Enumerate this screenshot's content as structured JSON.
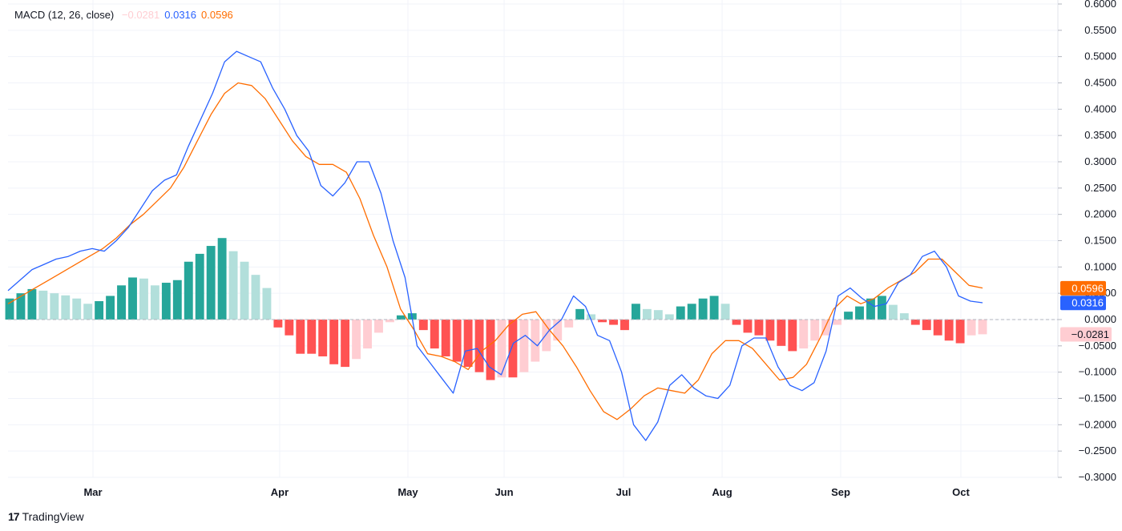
{
  "legend": {
    "name": "MACD (12, 26, close)",
    "histogram_value": "−0.0281",
    "macd_value": "0.0316",
    "signal_value": "0.0596"
  },
  "brand": {
    "logo_glyph": "17",
    "name": "TradingView"
  },
  "colors": {
    "macd_line": "#2962ff",
    "signal_line": "#ff6d00",
    "hist_pos_strong": "#26a69a",
    "hist_pos_weak": "#b2dfdb",
    "hist_neg_strong": "#ff5252",
    "hist_neg_weak": "#ffcdd2",
    "grid": "#f0f3fa"
  },
  "chart_data": {
    "type": "line",
    "title": "MACD (12, 26, close)",
    "ylim": [
      -0.3,
      0.6
    ],
    "y_ticks": [
      "0.6000",
      "0.5500",
      "0.5000",
      "0.4500",
      "0.4000",
      "0.3500",
      "0.3000",
      "0.2500",
      "0.2000",
      "0.1500",
      "0.1000",
      "0.0500",
      "0.0000",
      "−0.0500",
      "−0.1000",
      "−0.1500",
      "−0.2000",
      "−0.2500",
      "−0.3000"
    ],
    "x_labels": [
      "Mar",
      "Apr",
      "May",
      "Jun",
      "Jul",
      "Aug",
      "Sep",
      "Oct"
    ],
    "grid": true,
    "last_values": {
      "macd": "0.0316",
      "signal": "0.0596",
      "histogram": "−0.0281"
    },
    "series": [
      {
        "name": "MACD",
        "type": "line",
        "values": [
          0.055,
          0.075,
          0.095,
          0.105,
          0.115,
          0.12,
          0.13,
          0.135,
          0.13,
          0.15,
          0.175,
          0.21,
          0.245,
          0.265,
          0.275,
          0.33,
          0.38,
          0.43,
          0.49,
          0.51,
          0.5,
          0.49,
          0.44,
          0.4,
          0.35,
          0.32,
          0.255,
          0.235,
          0.26,
          0.3,
          0.3,
          0.24,
          0.15,
          0.08,
          -0.05,
          -0.08,
          -0.11,
          -0.14,
          -0.06,
          -0.055,
          -0.09,
          -0.105,
          -0.045,
          -0.03,
          -0.05,
          -0.02,
          0.0,
          0.045,
          0.025,
          -0.03,
          -0.04,
          -0.1,
          -0.2,
          -0.23,
          -0.195,
          -0.125,
          -0.105,
          -0.13,
          -0.145,
          -0.15,
          -0.125,
          -0.05,
          -0.035,
          -0.035,
          -0.09,
          -0.125,
          -0.135,
          -0.12,
          -0.06,
          0.045,
          0.06,
          0.04,
          0.025,
          0.03,
          0.07,
          0.085,
          0.12,
          0.13,
          0.1,
          0.045,
          0.035,
          0.032
        ]
      },
      {
        "name": "Signal",
        "type": "line",
        "values": [
          0.03,
          0.045,
          0.06,
          0.075,
          0.09,
          0.105,
          0.12,
          0.135,
          0.155,
          0.18,
          0.2,
          0.225,
          0.25,
          0.29,
          0.34,
          0.39,
          0.43,
          0.45,
          0.445,
          0.42,
          0.38,
          0.34,
          0.31,
          0.295,
          0.295,
          0.28,
          0.23,
          0.16,
          0.1,
          0.02,
          -0.02,
          -0.065,
          -0.07,
          -0.08,
          -0.095,
          -0.06,
          -0.04,
          -0.01,
          0.01,
          0.015,
          -0.02,
          -0.05,
          -0.09,
          -0.135,
          -0.175,
          -0.19,
          -0.17,
          -0.145,
          -0.13,
          -0.135,
          -0.14,
          -0.115,
          -0.065,
          -0.04,
          -0.04,
          -0.055,
          -0.085,
          -0.115,
          -0.11,
          -0.085,
          -0.035,
          0.02,
          0.045,
          0.03,
          0.04,
          0.06,
          0.075,
          0.09,
          0.115,
          0.115,
          0.09,
          0.065,
          0.06
        ]
      },
      {
        "name": "Histogram",
        "type": "bar",
        "values": [
          0.04,
          0.05,
          0.058,
          0.055,
          0.05,
          0.046,
          0.04,
          0.03,
          0.035,
          0.045,
          0.065,
          0.08,
          0.078,
          0.065,
          0.07,
          0.075,
          0.11,
          0.125,
          0.14,
          0.155,
          0.13,
          0.11,
          0.085,
          0.06,
          -0.015,
          -0.03,
          -0.065,
          -0.065,
          -0.07,
          -0.085,
          -0.09,
          -0.075,
          -0.055,
          -0.025,
          -0.005,
          0.008,
          0.012,
          -0.02,
          -0.055,
          -0.07,
          -0.08,
          -0.09,
          -0.1,
          -0.115,
          -0.11,
          -0.11,
          -0.1,
          -0.08,
          -0.06,
          -0.04,
          -0.015,
          0.02,
          0.01,
          -0.005,
          -0.01,
          -0.02,
          0.03,
          0.02,
          0.018,
          0.01,
          0.025,
          0.03,
          0.04,
          0.045,
          0.03,
          -0.01,
          -0.025,
          -0.03,
          -0.04,
          -0.05,
          -0.06,
          -0.055,
          -0.04,
          -0.03,
          -0.01,
          0.015,
          0.025,
          0.04,
          0.045,
          0.028,
          0.012,
          -0.01,
          -0.02,
          -0.03,
          -0.04,
          -0.045,
          -0.03,
          -0.028
        ]
      }
    ]
  }
}
